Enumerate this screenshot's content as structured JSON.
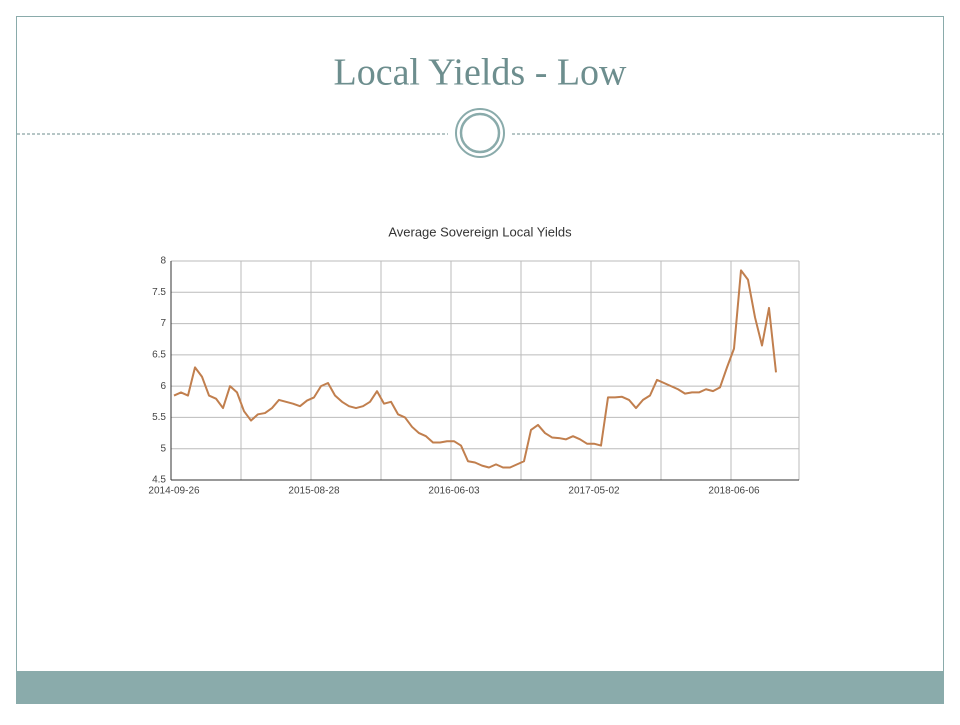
{
  "slide": {
    "title": "Local Yields - Low"
  },
  "chart_data": {
    "type": "line",
    "title": "Average Sovereign Local Yields",
    "x": [
      "2014-09-26",
      null,
      null,
      null,
      null,
      null,
      null,
      null,
      null,
      null,
      null,
      null,
      null,
      null,
      null,
      null,
      null,
      null,
      null,
      null,
      "2015-08-28",
      null,
      null,
      null,
      null,
      null,
      null,
      null,
      null,
      null,
      null,
      null,
      null,
      null,
      null,
      null,
      null,
      null,
      null,
      null,
      "2016-06-03",
      null,
      null,
      null,
      null,
      null,
      null,
      null,
      null,
      null,
      null,
      null,
      null,
      null,
      null,
      null,
      null,
      null,
      null,
      null,
      "2017-05-02",
      null,
      null,
      null,
      null,
      null,
      null,
      null,
      null,
      null,
      null,
      null,
      null,
      null,
      null,
      null,
      null,
      null,
      null,
      null,
      "2018-06-06",
      null,
      null,
      null,
      null,
      null,
      null
    ],
    "series": [
      {
        "name": "Average Sovereign Local Yields",
        "color": "#c17f4e",
        "values": [
          5.85,
          5.9,
          5.85,
          6.3,
          6.15,
          5.85,
          5.8,
          5.65,
          6.0,
          5.9,
          5.6,
          5.45,
          5.55,
          5.57,
          5.65,
          5.78,
          5.75,
          5.72,
          5.68,
          5.77,
          5.82,
          6.0,
          6.05,
          5.85,
          5.75,
          5.68,
          5.65,
          5.68,
          5.75,
          5.92,
          5.72,
          5.75,
          5.55,
          5.5,
          5.35,
          5.25,
          5.2,
          5.1,
          5.1,
          5.12,
          5.12,
          5.05,
          4.8,
          4.78,
          4.73,
          4.7,
          4.75,
          4.7,
          4.7,
          4.75,
          4.8,
          5.3,
          5.38,
          5.25,
          5.18,
          5.17,
          5.15,
          5.2,
          5.15,
          5.08,
          5.08,
          5.05,
          5.82,
          5.82,
          5.83,
          5.78,
          5.65,
          5.78,
          5.85,
          6.1,
          6.05,
          6.0,
          5.95,
          5.88,
          5.9,
          5.9,
          5.95,
          5.92,
          5.98,
          6.3,
          6.6,
          7.85,
          7.7,
          7.1,
          6.65,
          7.25,
          6.22
        ]
      }
    ],
    "ylim": [
      4.5,
      8
    ],
    "yticks": [
      4.5,
      5,
      5.5,
      6,
      6.5,
      7,
      7.5,
      8
    ],
    "grid": true
  }
}
